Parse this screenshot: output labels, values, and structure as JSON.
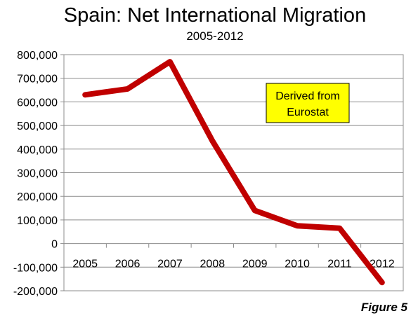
{
  "chart_data": {
    "type": "line",
    "title": "Spain: Net International Migration",
    "subtitle": "2005-2012",
    "xlabel": "",
    "ylabel": "",
    "categories": [
      "2005",
      "2006",
      "2007",
      "2008",
      "2009",
      "2010",
      "2011",
      "2012"
    ],
    "series": [
      {
        "values": [
          630000,
          655000,
          770000,
          435000,
          140000,
          75000,
          65000,
          -165000
        ],
        "color": "#c00000"
      }
    ],
    "ylim": [
      -200000,
      800000
    ],
    "yticks": [
      800000,
      700000,
      600000,
      500000,
      400000,
      300000,
      200000,
      100000,
      0,
      -100000,
      -200000
    ],
    "ytick_labels": [
      "800,000",
      "700,000",
      "600,000",
      "500,000",
      "400,000",
      "300,000",
      "200,000",
      "100,000",
      "0",
      "-100,000",
      "-200,000"
    ],
    "grid": true,
    "legend": "none",
    "annotation": {
      "lines": [
        "Derived from",
        "Eurostat"
      ],
      "fill_color": "#ffff00"
    },
    "figure_label": "Figure 5"
  }
}
